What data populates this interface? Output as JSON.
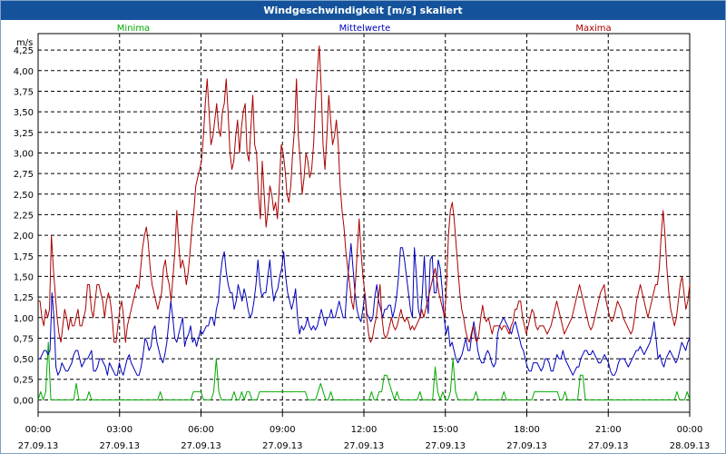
{
  "window": {
    "title": "Windgeschwindigkeit [m/s] skaliert"
  },
  "chart_data": {
    "type": "line",
    "title": "Windgeschwindigkeit [m/s] skaliert",
    "ylabel": "m/s",
    "xlabel": "",
    "ylim": [
      -0.15,
      4.45
    ],
    "xlim": [
      0,
      24
    ],
    "grid": true,
    "y_ticks": [
      "0,00",
      "0,25",
      "0,50",
      "0,75",
      "1,00",
      "1,25",
      "1,50",
      "1,75",
      "2,00",
      "2,25",
      "2,50",
      "2,75",
      "3,00",
      "3,25",
      "3,50",
      "3,75",
      "4,00",
      "4,25"
    ],
    "x_ticks": [
      {
        "time": "00:00",
        "date": "27.09.13"
      },
      {
        "time": "03:00",
        "date": "27.09.13"
      },
      {
        "time": "06:00",
        "date": "27.09.13"
      },
      {
        "time": "09:00",
        "date": "27.09.13"
      },
      {
        "time": "12:00",
        "date": "27.09.13"
      },
      {
        "time": "15:00",
        "date": "27.09.13"
      },
      {
        "time": "18:00",
        "date": "27.09.13"
      },
      {
        "time": "21:00",
        "date": "27.09.13"
      },
      {
        "time": "00:00",
        "date": "28.09.13"
      }
    ],
    "series": [
      {
        "name": "Minima",
        "color": "#00aa00",
        "values": [
          0,
          0.1,
          0,
          0.1,
          0.7,
          0,
          0,
          0,
          0,
          0,
          0,
          0,
          0,
          0,
          0,
          0.2,
          0,
          0,
          0,
          0,
          0.1,
          0,
          0,
          0,
          0,
          0,
          0,
          0,
          0,
          0,
          0,
          0,
          0,
          0,
          0,
          0,
          0,
          0,
          0,
          0,
          0,
          0,
          0,
          0,
          0,
          0,
          0,
          0,
          0.1,
          0,
          0,
          0,
          0,
          0,
          0,
          0,
          0,
          0,
          0,
          0,
          0,
          0.1,
          0.1,
          0.1,
          0.1,
          0,
          0,
          0,
          0,
          0.1,
          0.5,
          0.1,
          0,
          0,
          0,
          0,
          0,
          0.1,
          0,
          0,
          0.1,
          0,
          0.1,
          0.1,
          0,
          0,
          0,
          0.1,
          0.1,
          0.1,
          0.1,
          0.1,
          0.1,
          0.1,
          0.1,
          0.1,
          0.1,
          0.1,
          0.1,
          0.1,
          0.1,
          0.1,
          0.1,
          0.1,
          0.1,
          0.1,
          0,
          0,
          0,
          0,
          0.1,
          0.2,
          0.1,
          0,
          0,
          0.1,
          0,
          0,
          0,
          0,
          0,
          0,
          0,
          0,
          0,
          0,
          0,
          0,
          0,
          0,
          0,
          0.1,
          0,
          0,
          0.1,
          0.1,
          0.3,
          0.3,
          0.2,
          0.1,
          0,
          0.1,
          0,
          0,
          0,
          0,
          0,
          0,
          0,
          0,
          0.1,
          0,
          0,
          0,
          0,
          0,
          0.4,
          0.1,
          0,
          0.1,
          0,
          0,
          0.1,
          0.5,
          0.1,
          0,
          0,
          0,
          0,
          0,
          0,
          0,
          0.1,
          0,
          0,
          0,
          0,
          0,
          0,
          0,
          0,
          0,
          0,
          0.1,
          0,
          0,
          0,
          0,
          0,
          0,
          0,
          0,
          0,
          0,
          0,
          0.1,
          0.1,
          0.1,
          0.1,
          0.1,
          0.1,
          0.1,
          0.1,
          0.1,
          0.1,
          0,
          0,
          0.1,
          0,
          0,
          0,
          0,
          0,
          0.3,
          0.3,
          0,
          0,
          0,
          0,
          0,
          0,
          0,
          0,
          0,
          0,
          0,
          0,
          0,
          0,
          0,
          0,
          0,
          0,
          0,
          0,
          0,
          0,
          0,
          0,
          0,
          0,
          0,
          0,
          0,
          0,
          0,
          0,
          0,
          0,
          0,
          0,
          0.1,
          0,
          0,
          0,
          0.1,
          0
        ]
      },
      {
        "name": "Mittelwerte",
        "color": "#0000bb",
        "values": [
          0.5,
          0.5,
          0.55,
          0.6,
          0.6,
          0.55,
          0.6,
          1.3,
          1.0,
          0.4,
          0.3,
          0.35,
          0.45,
          0.4,
          0.35,
          0.35,
          0.4,
          0.45,
          0.55,
          0.6,
          0.6,
          0.5,
          0.4,
          0.45,
          0.5,
          0.5,
          0.55,
          0.6,
          0.35,
          0.35,
          0.4,
          0.5,
          0.5,
          0.45,
          0.4,
          0.3,
          0.45,
          0.4,
          0.35,
          0.3,
          0.3,
          0.45,
          0.35,
          0.3,
          0.4,
          0.5,
          0.55,
          0.45,
          0.4,
          0.35,
          0.3,
          0.3,
          0.4,
          0.55,
          0.75,
          0.7,
          0.6,
          0.65,
          0.85,
          0.9,
          0.7,
          0.6,
          0.5,
          0.45,
          0.55,
          0.7,
          0.95,
          1.2,
          1.0,
          0.75,
          0.7,
          0.8,
          0.9,
          1.0,
          0.65,
          0.75,
          0.8,
          0.9,
          0.7,
          0.75,
          0.65,
          0.75,
          0.85,
          0.8,
          0.85,
          0.9,
          0.9,
          1.0,
          1.0,
          0.9,
          1.1,
          1.2,
          1.5,
          1.7,
          1.8,
          1.55,
          1.4,
          1.3,
          1.3,
          1.1,
          1.2,
          1.4,
          1.3,
          1.2,
          1.35,
          1.25,
          1.1,
          1.0,
          1.05,
          1.2,
          1.4,
          1.7,
          1.4,
          1.25,
          1.3,
          1.3,
          1.5,
          1.7,
          1.4,
          1.2,
          1.3,
          1.35,
          1.5,
          1.6,
          1.8,
          1.5,
          1.3,
          1.2,
          1.1,
          1.2,
          1.35,
          1.0,
          0.8,
          0.9,
          0.85,
          0.9,
          1.0,
          0.9,
          0.85,
          0.9,
          0.85,
          0.9,
          1.0,
          1.1,
          1.0,
          0.9,
          1.0,
          1.0,
          1.1,
          1.0,
          1.0,
          1.1,
          1.2,
          1.1,
          1.0,
          1.0,
          1.4,
          1.65,
          1.9,
          1.6,
          1.3,
          1.1,
          1.0,
          0.95,
          1.1,
          1.3,
          1.05,
          1.0,
          0.95,
          1.0,
          1.25,
          1.4,
          1.2,
          1.1,
          1.0,
          1.1,
          1.1,
          1.15,
          1.15,
          1.0,
          1.1,
          1.25,
          1.5,
          1.85,
          1.85,
          1.7,
          1.5,
          1.3,
          1.1,
          1.0,
          1.85,
          1.5,
          1.1,
          1.0,
          1.3,
          1.75,
          1.25,
          1.05,
          1.7,
          1.75,
          1.3,
          1.3,
          1.7,
          1.6,
          1.35,
          1.0,
          0.8,
          0.9,
          0.65,
          0.7,
          0.6,
          0.5,
          0.45,
          0.5,
          0.55,
          0.65,
          0.75,
          0.6,
          0.6,
          0.8,
          0.95,
          0.8,
          0.6,
          0.5,
          0.45,
          0.45,
          0.55,
          0.6,
          0.55,
          0.45,
          0.4,
          0.45,
          0.8,
          0.9,
          0.95,
          1.0,
          0.95,
          0.9,
          0.85,
          0.8,
          0.9,
          0.95,
          0.85,
          0.75,
          0.65,
          0.6,
          0.5,
          0.4,
          0.35,
          0.35,
          0.45,
          0.45,
          0.45,
          0.4,
          0.35,
          0.4,
          0.5,
          0.5,
          0.45,
          0.35,
          0.35,
          0.45,
          0.55,
          0.5,
          0.5,
          0.6,
          0.5,
          0.45,
          0.4,
          0.35,
          0.3,
          0.35,
          0.4,
          0.4,
          0.5,
          0.55,
          0.6,
          0.6,
          0.55,
          0.55,
          0.6,
          0.55,
          0.5,
          0.45,
          0.45,
          0.5,
          0.55,
          0.5,
          0.45,
          0.35,
          0.3,
          0.3,
          0.35,
          0.45,
          0.5,
          0.5,
          0.5,
          0.45,
          0.4,
          0.45,
          0.5,
          0.55,
          0.6,
          0.6,
          0.65,
          0.6,
          0.55,
          0.6,
          0.65,
          0.7,
          0.8,
          0.95,
          0.75,
          0.5,
          0.55,
          0.45,
          0.4,
          0.5,
          0.55,
          0.6,
          0.55,
          0.5,
          0.45,
          0.5,
          0.6,
          0.7,
          0.65,
          0.6,
          0.7,
          0.75
        ]
      },
      {
        "name": "Maxima",
        "color": "#aa0000",
        "values": [
          1.2,
          1.2,
          1.0,
          0.9,
          1.1,
          1.0,
          1.1,
          2.0,
          1.6,
          1.3,
          1.0,
          0.8,
          0.7,
          0.9,
          1.1,
          1.0,
          0.85,
          1.0,
          0.9,
          0.9,
          1.0,
          1.1,
          0.9,
          0.9,
          1.0,
          1.1,
          1.4,
          1.4,
          1.1,
          1.0,
          1.2,
          1.4,
          1.4,
          1.3,
          1.2,
          1.0,
          1.2,
          1.3,
          1.2,
          1.0,
          0.7,
          0.7,
          0.9,
          1.1,
          1.2,
          1.0,
          0.7,
          0.9,
          1.0,
          1.1,
          1.2,
          1.3,
          1.4,
          1.35,
          1.6,
          1.85,
          2.0,
          2.1,
          1.9,
          1.6,
          1.4,
          1.3,
          1.2,
          1.1,
          1.2,
          1.3,
          1.6,
          1.7,
          1.5,
          1.4,
          1.2,
          1.5,
          1.8,
          2.3,
          1.9,
          1.6,
          1.7,
          1.6,
          1.4,
          1.55,
          1.8,
          2.1,
          2.3,
          2.6,
          2.7,
          2.8,
          2.9,
          3.2,
          3.6,
          3.9,
          3.5,
          3.1,
          3.2,
          3.4,
          3.6,
          3.3,
          3.2,
          3.5,
          3.6,
          3.9,
          3.5,
          3.0,
          2.8,
          2.9,
          3.2,
          3.4,
          3.0,
          3.3,
          3.5,
          3.6,
          3.0,
          2.9,
          3.3,
          3.7,
          3.1,
          3.0,
          2.5,
          2.2,
          2.9,
          2.5,
          2.1,
          2.3,
          2.6,
          2.5,
          2.3,
          2.4,
          2.2,
          2.6,
          3.1,
          3.0,
          2.8,
          2.5,
          2.4,
          2.6,
          3.0,
          3.3,
          3.9,
          3.2,
          2.9,
          2.5,
          2.7,
          3.0,
          2.9,
          2.7,
          2.8,
          3.1,
          3.6,
          4.0,
          4.3,
          3.8,
          3.1,
          2.8,
          3.2,
          3.7,
          3.4,
          3.1,
          3.2,
          3.4,
          3.1,
          2.6,
          2.3,
          2.1,
          1.8,
          1.6,
          1.4,
          1.2,
          1.1,
          1.4,
          1.8,
          2.2,
          1.8,
          1.5,
          1.3,
          1.0,
          0.8,
          0.7,
          0.75,
          0.9,
          1.0,
          1.2,
          1.4,
          1.0,
          0.8,
          0.75,
          0.8,
          0.9,
          1.0,
          0.9,
          0.85,
          0.9,
          1.0,
          1.1,
          1.0,
          0.95,
          1.0,
          0.95,
          0.85,
          0.9,
          0.85,
          0.9,
          0.95,
          1.0,
          1.1,
          1.0,
          1.1,
          1.2,
          1.3,
          1.4,
          1.5,
          1.6,
          1.45,
          1.3,
          1.2,
          1.1,
          1.0,
          1.4,
          2.0,
          2.3,
          2.4,
          2.2,
          1.9,
          1.6,
          1.3,
          1.1,
          1.0,
          0.85,
          0.75,
          0.7,
          0.8,
          0.9,
          0.75,
          0.7,
          0.8,
          1.0,
          1.15,
          1.0,
          0.95,
          1.0,
          0.9,
          0.8,
          0.9,
          0.9,
          0.9,
          0.9,
          0.85,
          0.9,
          0.9,
          0.85,
          0.8,
          0.9,
          0.95,
          1.1,
          1.1,
          1.2,
          1.2,
          1.0,
          0.9,
          0.8,
          0.9,
          1.0,
          1.1,
          1.05,
          0.9,
          0.85,
          0.9,
          0.9,
          0.9,
          0.85,
          0.8,
          0.85,
          0.9,
          1.0,
          1.1,
          1.2,
          1.1,
          1.0,
          0.9,
          0.8,
          0.85,
          0.9,
          0.95,
          1.0,
          1.1,
          1.2,
          1.3,
          1.4,
          1.3,
          1.2,
          1.1,
          1.0,
          0.9,
          0.85,
          0.9,
          1.0,
          1.1,
          1.2,
          1.3,
          1.35,
          1.4,
          1.2,
          1.1,
          1.0,
          0.95,
          1.0,
          1.1,
          1.2,
          1.15,
          1.1,
          1.0,
          0.95,
          0.9,
          0.85,
          0.8,
          0.85,
          1.0,
          1.2,
          1.3,
          1.4,
          1.3,
          1.2,
          1.1,
          1.0,
          1.1,
          1.2,
          1.3,
          1.4,
          1.4,
          1.6,
          2.0,
          2.3,
          2.0,
          1.6,
          1.3,
          1.1,
          1.0,
          0.9,
          1.0,
          1.2,
          1.4,
          1.5,
          1.3,
          1.1,
          1.2,
          1.4
        ]
      }
    ]
  }
}
